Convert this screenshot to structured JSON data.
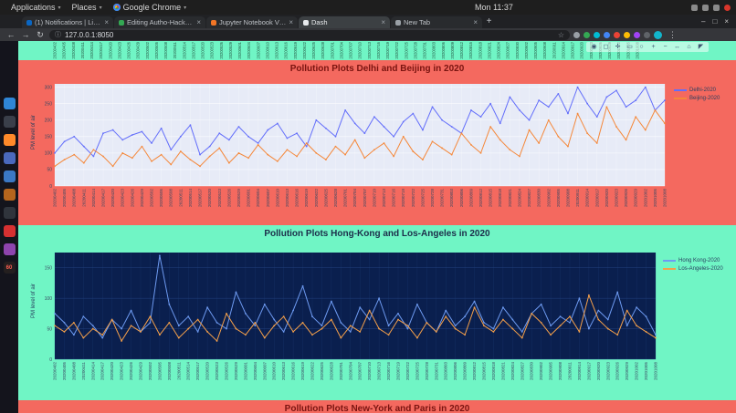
{
  "os_bar": {
    "menus": [
      {
        "label": "Applications"
      },
      {
        "label": "Places"
      },
      {
        "label": "Google Chrome"
      }
    ],
    "clock": "Mon 11:37"
  },
  "icons": {
    "caret": "▾",
    "back": "←",
    "forward": "→",
    "reload": "↻",
    "info": "ⓘ",
    "star": "☆",
    "kebab": "⋮",
    "plus": "+",
    "minimize": "–",
    "maximize": "□",
    "close": "×"
  },
  "browser": {
    "tabs": [
      {
        "title": "(1) Notifications | LinkedIn",
        "favicon_color": "#0a66c2",
        "active": false
      },
      {
        "title": "Editing Autho-Hackathon",
        "favicon_color": "#34a853",
        "active": false
      },
      {
        "title": "Jupyter Notebook Viewer",
        "favicon_color": "#f37626",
        "active": false
      },
      {
        "title": "Dash",
        "favicon_color": "#e8eaed",
        "active": true
      },
      {
        "title": "New Tab",
        "favicon_color": "#9aa0a6",
        "active": false
      }
    ],
    "url": "127.0.0.1:8050",
    "extension_colors": [
      "#9aa0a6",
      "#34a853",
      "#00bcd4",
      "#4285f4",
      "#ea4335",
      "#fbbc05",
      "#a142f4",
      "#5f6368"
    ]
  },
  "dock": {
    "items": [
      {
        "name": "vscode",
        "color": "#2f86d6",
        "label": ""
      },
      {
        "name": "terminal",
        "color": "#3a3f4a",
        "label": ""
      },
      {
        "name": "firefox",
        "color": "#ff8a2a",
        "label": ""
      },
      {
        "name": "messenger",
        "color": "#4a69bd",
        "label": ""
      },
      {
        "name": "files",
        "color": "#3b78c4",
        "label": ""
      },
      {
        "name": "gimp",
        "color": "#b5651d",
        "label": ""
      },
      {
        "name": "settings",
        "color": "#30343c",
        "label": ""
      },
      {
        "name": "recorder",
        "color": "#d63031",
        "label": ""
      },
      {
        "name": "photos",
        "color": "#8e44ad",
        "label": ""
      },
      {
        "name": "counter",
        "color": "#241f1f",
        "label": "60"
      }
    ]
  },
  "modebar": {
    "buttons": [
      {
        "name": "camera",
        "glyph": "◉"
      },
      {
        "name": "zoom",
        "glyph": "◻"
      },
      {
        "name": "pan",
        "glyph": "✛"
      },
      {
        "name": "box-select",
        "glyph": "▭"
      },
      {
        "name": "lasso-select",
        "glyph": "○"
      },
      {
        "name": "zoom-in",
        "glyph": "+"
      },
      {
        "name": "zoom-out",
        "glyph": "−"
      },
      {
        "name": "autoscale",
        "glyph": "↔"
      },
      {
        "name": "reset-axes",
        "glyph": "⌂"
      },
      {
        "name": "plotly-logo",
        "glyph": "◤"
      }
    ]
  },
  "page": {
    "sections": [
      {
        "title": "Pollution Plots Delhi and Beijing in 2020",
        "bg": "#f4695f",
        "title_color": "#7a1410"
      },
      {
        "title": "Pollution Plots Hong-Kong and Los-Angeles in 2020",
        "bg": "#70f5c5",
        "title_color": "#1c2e4a"
      },
      {
        "title": "Pollution Plots New-York and Paris in 2020",
        "bg": "#f4695f",
        "title_color": "#7a1410"
      }
    ]
  },
  "chart_data": [
    {
      "type": "line",
      "title": "Pollution Plots Delhi and Beijing in 2020",
      "xlabel": "",
      "ylabel": "PM level of air",
      "ylim": [
        0,
        310
      ],
      "yticks": [
        0,
        50,
        100,
        150,
        200,
        250,
        300
      ],
      "plot_bg": "#e7ebf7",
      "grid": "#ffffff",
      "legend_position": "right",
      "x": [
        "20200402",
        "20200405",
        "20200408",
        "20200411",
        "20200414",
        "20200417",
        "20200420",
        "20200423",
        "20200426",
        "20200429",
        "20200502",
        "20200505",
        "20200508",
        "20200511",
        "20200514",
        "20200517",
        "20200520",
        "20200523",
        "20200526",
        "20200529",
        "20200601",
        "20200604",
        "20200607",
        "20200610",
        "20200613",
        "20200616",
        "20200619",
        "20200622",
        "20200625",
        "20200628",
        "20200701",
        "20200704",
        "20200707",
        "20200710",
        "20200713",
        "20200716",
        "20200719",
        "20200722",
        "20200725",
        "20200728",
        "20200731",
        "20200803",
        "20200806",
        "20200809",
        "20200812",
        "20200815",
        "20200818",
        "20200821",
        "20200824",
        "20200827",
        "20200830",
        "20200902",
        "20200905",
        "20200908",
        "20200911",
        "20200914",
        "20200917",
        "20200920",
        "20200923",
        "20200926",
        "20200929",
        "20201002",
        "20201005",
        "20201008"
      ],
      "series": [
        {
          "name": "Delhi-2020",
          "color": "#636efa",
          "values": [
            100,
            135,
            150,
            120,
            90,
            160,
            170,
            140,
            155,
            165,
            130,
            175,
            110,
            150,
            185,
            95,
            120,
            160,
            140,
            180,
            150,
            130,
            170,
            190,
            145,
            160,
            120,
            200,
            175,
            150,
            230,
            190,
            160,
            210,
            180,
            150,
            195,
            220,
            170,
            240,
            200,
            180,
            160,
            230,
            210,
            250,
            190,
            270,
            230,
            200,
            260,
            240,
            280,
            220,
            300,
            250,
            210,
            270,
            290,
            240,
            260,
            300,
            230,
            260
          ]
        },
        {
          "name": "Beijing-2020",
          "color": "#f5883a",
          "values": [
            60,
            80,
            95,
            70,
            110,
            90,
            60,
            100,
            85,
            120,
            75,
            95,
            65,
            105,
            80,
            60,
            90,
            115,
            70,
            100,
            85,
            125,
            95,
            75,
            110,
            90,
            130,
            100,
            80,
            120,
            95,
            140,
            85,
            110,
            130,
            90,
            150,
            105,
            80,
            135,
            115,
            95,
            160,
            125,
            100,
            180,
            140,
            110,
            90,
            170,
            130,
            200,
            150,
            120,
            220,
            160,
            130,
            240,
            180,
            140,
            210,
            170,
            230,
            190
          ]
        }
      ]
    },
    {
      "type": "line",
      "title": "Pollution Plots Hong-Kong and Los-Angeles in 2020",
      "xlabel": "",
      "ylabel": "PM level of air",
      "ylim": [
        0,
        175
      ],
      "yticks": [
        0,
        50,
        100,
        150
      ],
      "plot_bg": "#0a1f4e",
      "grid": "#23437f",
      "legend_position": "right",
      "x": [
        "20200402",
        "20200405",
        "20200408",
        "20200411",
        "20200414",
        "20200417",
        "20200420",
        "20200423",
        "20200426",
        "20200429",
        "20200502",
        "20200505",
        "20200508",
        "20200511",
        "20200514",
        "20200517",
        "20200520",
        "20200523",
        "20200526",
        "20200529",
        "20200601",
        "20200604",
        "20200607",
        "20200610",
        "20200613",
        "20200616",
        "20200619",
        "20200622",
        "20200625",
        "20200628",
        "20200701",
        "20200704",
        "20200707",
        "20200710",
        "20200713",
        "20200716",
        "20200719",
        "20200722",
        "20200725",
        "20200728",
        "20200731",
        "20200803",
        "20200806",
        "20200809",
        "20200812",
        "20200815",
        "20200818",
        "20200821",
        "20200824",
        "20200827",
        "20200830",
        "20200902",
        "20200905",
        "20200908",
        "20200911",
        "20200914",
        "20200917",
        "20200920",
        "20200923",
        "20200926",
        "20200929",
        "20201002",
        "20201005",
        "20201008"
      ],
      "series": [
        {
          "name": "Hong Kong-2020",
          "color": "#6e9bf2",
          "values": [
            75,
            60,
            40,
            70,
            55,
            35,
            65,
            50,
            80,
            45,
            60,
            170,
            90,
            55,
            70,
            45,
            85,
            60,
            50,
            110,
            75,
            55,
            90,
            65,
            45,
            80,
            120,
            70,
            55,
            95,
            60,
            45,
            85,
            65,
            100,
            55,
            75,
            50,
            90,
            60,
            45,
            80,
            55,
            70,
            95,
            60,
            50,
            85,
            65,
            45,
            75,
            90,
            55,
            70,
            60,
            100,
            50,
            80,
            65,
            110,
            55,
            85,
            70,
            40
          ]
        },
        {
          "name": "Los-Angeles-2020",
          "color": "#f5a04a",
          "values": [
            55,
            45,
            60,
            35,
            50,
            40,
            65,
            30,
            55,
            45,
            70,
            40,
            60,
            35,
            50,
            65,
            45,
            30,
            75,
            50,
            40,
            60,
            35,
            55,
            70,
            45,
            60,
            40,
            50,
            65,
            35,
            55,
            45,
            80,
            50,
            40,
            65,
            55,
            35,
            60,
            45,
            70,
            50,
            40,
            85,
            55,
            45,
            65,
            50,
            35,
            75,
            60,
            40,
            55,
            70,
            45,
            105,
            65,
            50,
            40,
            80,
            55,
            45,
            35
          ]
        }
      ]
    }
  ]
}
